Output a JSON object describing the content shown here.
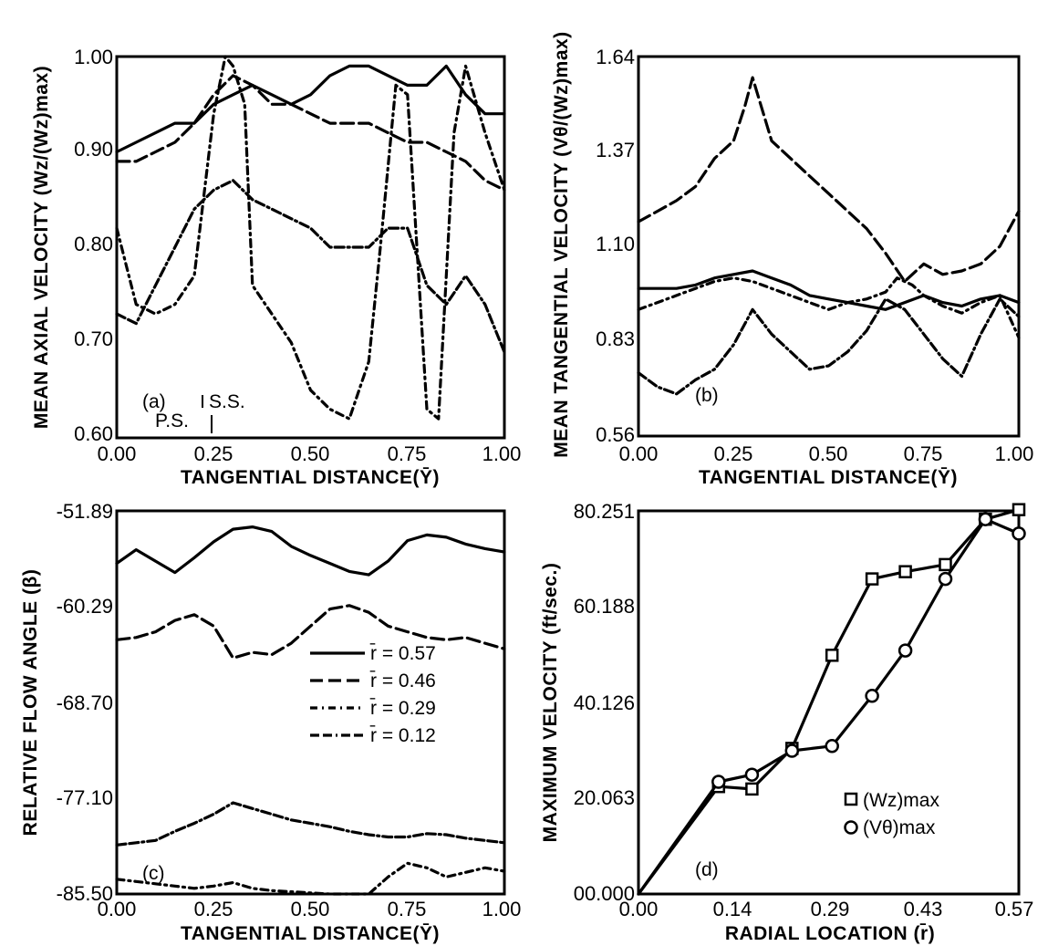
{
  "chart_data": [
    {
      "panel": "(a)",
      "type": "line",
      "xlabel": "TANGENTIAL DISTANCE(Ȳ)",
      "ylabel": "MEAN AXIAL VELOCITY (Wz/(Wz)max)",
      "xticks": [
        "0.00",
        "0.25",
        "0.50",
        "0.75",
        "1.00"
      ],
      "yticks": [
        "0.60",
        "0.70",
        "0.80",
        "0.90",
        "1.00"
      ],
      "xlim": [
        0,
        1
      ],
      "ylim": [
        0.6,
        1.0
      ],
      "annotations": [
        "(a)",
        "S.S.",
        "P.S."
      ],
      "series": [
        {
          "dash": "solid",
          "x": [
            0,
            0.05,
            0.1,
            0.15,
            0.2,
            0.25,
            0.3,
            0.35,
            0.4,
            0.45,
            0.5,
            0.55,
            0.6,
            0.65,
            0.7,
            0.75,
            0.8,
            0.85,
            0.9,
            0.95,
            1.0
          ],
          "y": [
            0.9,
            0.91,
            0.92,
            0.93,
            0.93,
            0.95,
            0.96,
            0.97,
            0.96,
            0.95,
            0.96,
            0.98,
            0.99,
            0.99,
            0.98,
            0.97,
            0.97,
            0.99,
            0.96,
            0.94,
            0.94
          ]
        },
        {
          "dash": "long-dash",
          "x": [
            0,
            0.05,
            0.1,
            0.15,
            0.2,
            0.25,
            0.3,
            0.35,
            0.4,
            0.45,
            0.5,
            0.55,
            0.6,
            0.65,
            0.7,
            0.75,
            0.8,
            0.85,
            0.9,
            0.95,
            1.0
          ],
          "y": [
            0.89,
            0.89,
            0.9,
            0.91,
            0.93,
            0.96,
            0.98,
            0.97,
            0.95,
            0.95,
            0.94,
            0.93,
            0.93,
            0.93,
            0.92,
            0.91,
            0.91,
            0.9,
            0.89,
            0.87,
            0.86
          ]
        },
        {
          "dash": "dash-dot",
          "x": [
            0,
            0.05,
            0.1,
            0.15,
            0.2,
            0.25,
            0.28,
            0.3,
            0.33,
            0.35,
            0.4,
            0.45,
            0.5,
            0.55,
            0.6,
            0.65,
            0.68,
            0.72,
            0.75,
            0.8,
            0.83,
            0.87,
            0.9,
            0.95,
            1.0
          ],
          "y": [
            0.82,
            0.74,
            0.73,
            0.74,
            0.77,
            0.94,
            1.0,
            0.99,
            0.95,
            0.76,
            0.73,
            0.7,
            0.65,
            0.63,
            0.62,
            0.68,
            0.8,
            0.97,
            0.96,
            0.63,
            0.62,
            0.92,
            0.99,
            0.92,
            0.86
          ]
        },
        {
          "dash": "dash-dash-dot",
          "x": [
            0,
            0.05,
            0.1,
            0.15,
            0.2,
            0.25,
            0.3,
            0.35,
            0.4,
            0.45,
            0.5,
            0.55,
            0.6,
            0.65,
            0.7,
            0.75,
            0.8,
            0.85,
            0.9,
            0.95,
            1.0
          ],
          "y": [
            0.73,
            0.72,
            0.76,
            0.8,
            0.84,
            0.86,
            0.87,
            0.85,
            0.84,
            0.83,
            0.82,
            0.8,
            0.8,
            0.8,
            0.82,
            0.82,
            0.76,
            0.74,
            0.77,
            0.74,
            0.69
          ]
        }
      ]
    },
    {
      "panel": "(b)",
      "type": "line",
      "xlabel": "TANGENTIAL DISTANCE(Ȳ)",
      "ylabel": "MEAN TANGENTIAL VELOCITY (Vθ/(Wz)max)",
      "xticks": [
        "0.00",
        "0.25",
        "0.50",
        "0.75",
        "1.00"
      ],
      "yticks": [
        "0.56",
        "0.83",
        "1.10",
        "1.37",
        "1.64"
      ],
      "xlim": [
        0,
        1
      ],
      "ylim": [
        0.56,
        1.64
      ],
      "annotations": [
        "(b)"
      ],
      "series": [
        {
          "dash": "solid",
          "x": [
            0,
            0.05,
            0.1,
            0.15,
            0.2,
            0.25,
            0.3,
            0.35,
            0.4,
            0.45,
            0.5,
            0.55,
            0.6,
            0.65,
            0.7,
            0.75,
            0.8,
            0.85,
            0.9,
            0.95,
            1.0
          ],
          "y": [
            0.98,
            0.98,
            0.98,
            0.99,
            1.01,
            1.02,
            1.03,
            1.01,
            0.99,
            0.96,
            0.95,
            0.94,
            0.93,
            0.92,
            0.94,
            0.96,
            0.94,
            0.93,
            0.95,
            0.96,
            0.94
          ]
        },
        {
          "dash": "long-dash",
          "x": [
            0,
            0.05,
            0.1,
            0.15,
            0.2,
            0.25,
            0.28,
            0.3,
            0.35,
            0.4,
            0.45,
            0.5,
            0.55,
            0.6,
            0.65,
            0.7,
            0.75,
            0.8,
            0.85,
            0.9,
            0.95,
            1.0
          ],
          "y": [
            1.17,
            1.2,
            1.23,
            1.27,
            1.35,
            1.4,
            1.5,
            1.58,
            1.4,
            1.35,
            1.3,
            1.25,
            1.2,
            1.15,
            1.08,
            1.0,
            1.05,
            1.02,
            1.03,
            1.05,
            1.1,
            1.2
          ]
        },
        {
          "dash": "dash-dot",
          "x": [
            0,
            0.05,
            0.1,
            0.15,
            0.2,
            0.25,
            0.3,
            0.35,
            0.4,
            0.45,
            0.5,
            0.55,
            0.6,
            0.65,
            0.68,
            0.72,
            0.75,
            0.8,
            0.85,
            0.9,
            0.95,
            1.0
          ],
          "y": [
            0.92,
            0.94,
            0.96,
            0.98,
            1.0,
            1.01,
            1.0,
            0.98,
            0.96,
            0.94,
            0.92,
            0.94,
            0.95,
            0.97,
            1.01,
            0.99,
            0.96,
            0.93,
            0.91,
            0.94,
            0.96,
            0.84
          ]
        },
        {
          "dash": "dash-dash-dot",
          "x": [
            0,
            0.05,
            0.1,
            0.15,
            0.2,
            0.25,
            0.3,
            0.35,
            0.4,
            0.45,
            0.5,
            0.55,
            0.6,
            0.65,
            0.7,
            0.75,
            0.8,
            0.85,
            0.9,
            0.95,
            1.0
          ],
          "y": [
            0.74,
            0.7,
            0.68,
            0.72,
            0.75,
            0.82,
            0.92,
            0.85,
            0.8,
            0.75,
            0.76,
            0.8,
            0.86,
            0.95,
            0.92,
            0.85,
            0.78,
            0.73,
            0.85,
            0.95,
            0.9
          ]
        }
      ]
    },
    {
      "panel": "(c)",
      "type": "line",
      "xlabel": "TANGENTIAL DISTANCE(Ȳ)",
      "ylabel": "RELATIVE FLOW ANGLE (β)",
      "xticks": [
        "0.00",
        "0.25",
        "0.50",
        "0.75",
        "1.00"
      ],
      "yticks": [
        "-85.50",
        "-77.10",
        "-68.70",
        "-60.29",
        "-51.89"
      ],
      "xlim": [
        0,
        1
      ],
      "ylim": [
        -85.5,
        -51.89
      ],
      "annotations": [
        "(c)"
      ],
      "legend": {
        "position": "center-right",
        "entries": [
          "r̄ = 0.57",
          "r̄ = 0.46",
          "r̄ = 0.29",
          "r̄ = 0.12"
        ]
      },
      "series": [
        {
          "name": "r̄ = 0.57",
          "dash": "solid",
          "x": [
            0,
            0.05,
            0.1,
            0.15,
            0.2,
            0.25,
            0.3,
            0.35,
            0.4,
            0.45,
            0.5,
            0.55,
            0.6,
            0.65,
            0.7,
            0.75,
            0.8,
            0.85,
            0.9,
            0.95,
            1.0
          ],
          "y": [
            -56.5,
            -55.3,
            -56.3,
            -57.3,
            -56.0,
            -54.6,
            -53.5,
            -53.3,
            -53.7,
            -55.0,
            -55.8,
            -56.5,
            -57.2,
            -57.5,
            -56.3,
            -54.5,
            -54.0,
            -54.2,
            -54.8,
            -55.2,
            -55.5
          ]
        },
        {
          "name": "r̄ = 0.46",
          "dash": "long-dash",
          "x": [
            0,
            0.05,
            0.1,
            0.15,
            0.2,
            0.25,
            0.3,
            0.35,
            0.4,
            0.45,
            0.5,
            0.55,
            0.6,
            0.65,
            0.7,
            0.75,
            0.8,
            0.85,
            0.9,
            0.95,
            1.0
          ],
          "y": [
            -63.2,
            -63.0,
            -62.5,
            -61.5,
            -61.0,
            -62.0,
            -64.8,
            -64.3,
            -64.5,
            -63.5,
            -62.0,
            -60.5,
            -60.2,
            -60.8,
            -62.0,
            -62.5,
            -63.0,
            -63.2,
            -63.0,
            -63.5,
            -64.0
          ]
        },
        {
          "name": "r̄ = 0.29",
          "dash": "dash-dot",
          "x": [
            0,
            0.05,
            0.1,
            0.15,
            0.2,
            0.25,
            0.3,
            0.35,
            0.4,
            0.45,
            0.5,
            0.55,
            0.6,
            0.65,
            0.7,
            0.75,
            0.8,
            0.85,
            0.9,
            0.95,
            1.0
          ],
          "y": [
            -84.2,
            -84.4,
            -84.6,
            -84.8,
            -85.0,
            -84.8,
            -84.5,
            -85.0,
            -85.2,
            -85.3,
            -85.4,
            -85.5,
            -85.5,
            -85.5,
            -84.0,
            -82.8,
            -83.2,
            -84.0,
            -83.6,
            -83.2,
            -83.5
          ]
        },
        {
          "name": "r̄ = 0.12",
          "dash": "dash-dash-dot",
          "x": [
            0,
            0.05,
            0.1,
            0.15,
            0.2,
            0.25,
            0.3,
            0.35,
            0.4,
            0.45,
            0.5,
            0.55,
            0.6,
            0.65,
            0.7,
            0.75,
            0.8,
            0.85,
            0.9,
            0.95,
            1.0
          ],
          "y": [
            -81.2,
            -81.0,
            -80.8,
            -80.0,
            -79.3,
            -78.5,
            -77.5,
            -78.0,
            -78.5,
            -79.0,
            -79.3,
            -79.6,
            -80.0,
            -80.3,
            -80.5,
            -80.5,
            -80.2,
            -80.3,
            -80.6,
            -80.8,
            -81.0
          ]
        }
      ]
    },
    {
      "panel": "(d)",
      "type": "line",
      "xlabel": "RADIAL LOCATION (r̄)",
      "ylabel": "MAXIMUM VELOCITY (ft/sec.)",
      "xticks": [
        "0.00",
        "0.14",
        "0.29",
        "0.43",
        "0.57"
      ],
      "yticks": [
        "00.000",
        "20.063",
        "40.126",
        "60.188",
        "80.251"
      ],
      "xlim": [
        0,
        0.57
      ],
      "ylim": [
        0,
        80.251
      ],
      "annotations": [
        "(d)"
      ],
      "legend": {
        "position": "center-right",
        "entries": [
          "(Wz)max",
          "(Vθ)max"
        ]
      },
      "series": [
        {
          "name": "(Wz)max",
          "marker": "square",
          "x": [
            0,
            0.12,
            0.17,
            0.23,
            0.29,
            0.35,
            0.4,
            0.46,
            0.52,
            0.57
          ],
          "y": [
            0,
            22.5,
            22.0,
            30.5,
            50.0,
            66.0,
            67.5,
            69.0,
            78.5,
            80.5
          ]
        },
        {
          "name": "(Vθ)max",
          "marker": "circle",
          "x": [
            0,
            0.12,
            0.17,
            0.23,
            0.29,
            0.35,
            0.4,
            0.46,
            0.52,
            0.57
          ],
          "y": [
            0,
            23.5,
            25.0,
            30.0,
            31.0,
            41.5,
            51.0,
            66.0,
            78.5,
            75.5
          ]
        }
      ]
    }
  ]
}
